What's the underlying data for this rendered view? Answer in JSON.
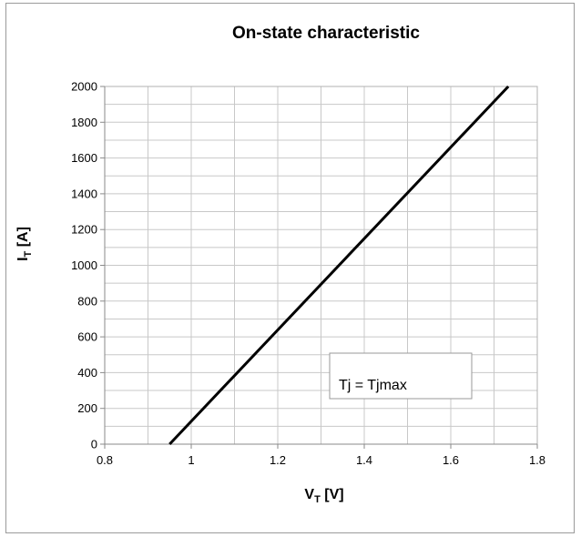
{
  "chart_data": {
    "type": "line",
    "title": "On-state characteristic",
    "xlabel": {
      "main": "V",
      "sub": "T",
      "unit": " [V]"
    },
    "ylabel": {
      "main": "I",
      "sub": "T",
      "unit": " [A]"
    },
    "xlim": [
      0.8,
      1.8
    ],
    "ylim": [
      0,
      2000
    ],
    "x_ticks": [
      0.8,
      1,
      1.2,
      1.4,
      1.6,
      1.8
    ],
    "x_tick_labels": [
      "0.8",
      "1",
      "1.2",
      "1.4",
      "1.6",
      "1.8"
    ],
    "y_ticks": [
      0,
      200,
      400,
      600,
      800,
      1000,
      1200,
      1400,
      1600,
      1800,
      2000
    ],
    "y_tick_labels": [
      "0",
      "200",
      "400",
      "600",
      "800",
      "1000",
      "1200",
      "1400",
      "1600",
      "1800",
      "2000"
    ],
    "grid": true,
    "x_minor_step": 0.1,
    "y_minor_step": 100,
    "series": [
      {
        "x": [
          0.95,
          1.733
        ],
        "y": [
          0,
          2000
        ],
        "color": "#000000"
      }
    ],
    "annotation": "Tj = Tjmax"
  }
}
